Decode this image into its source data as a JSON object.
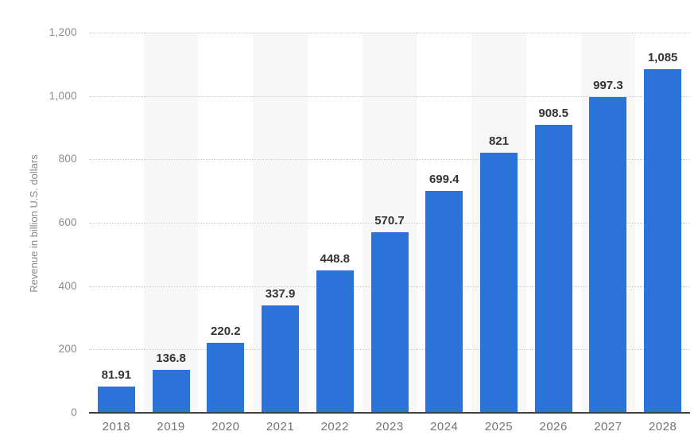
{
  "chart_data": {
    "type": "bar",
    "title": "",
    "xlabel": "",
    "ylabel": "Revenue in billion U.S. dollars",
    "categories": [
      "2018",
      "2019",
      "2020",
      "2021",
      "2022",
      "2023",
      "2024",
      "2025",
      "2026",
      "2027",
      "2028"
    ],
    "values": [
      81.91,
      136.8,
      220.2,
      337.9,
      448.8,
      570.7,
      699.4,
      821,
      908.5,
      997.3,
      1085
    ],
    "value_labels": [
      "81.91",
      "136.8",
      "220.2",
      "337.9",
      "448.8",
      "570.7",
      "699.4",
      "821",
      "908.5",
      "997.3",
      "1,085"
    ],
    "ytick_values": [
      0,
      200,
      400,
      600,
      800,
      1000,
      1200
    ],
    "ytick_labels": [
      "0",
      "200",
      "400",
      "600",
      "800",
      "1,000",
      "1,200"
    ],
    "ylim": [
      0,
      1200
    ],
    "grid": "horizontal-dotted",
    "legend": "none",
    "background_stripes": "alternating columns (2019, 2021, 2023, 2025, 2027)",
    "colors": {
      "bar": "#2b72d9",
      "stripe": "#f7f7f7",
      "gridline": "#cccccc",
      "axis_line": "#404040",
      "value_label": "#333333",
      "y_tick_label": "#8a8a8a",
      "x_tick_label": "#737373",
      "background": "#ffffff"
    }
  }
}
